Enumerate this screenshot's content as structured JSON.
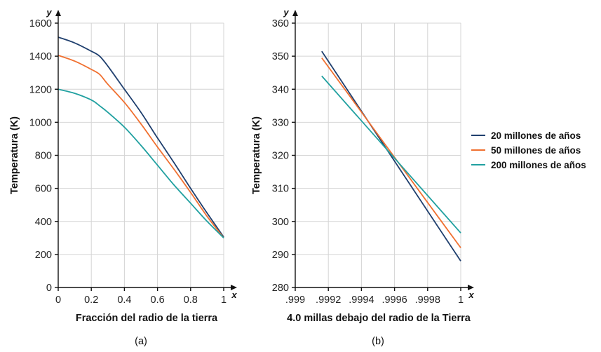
{
  "chart_data": [
    {
      "type": "line",
      "caption": "(a)",
      "xlabel": "Fracción del radio de la tierra",
      "ylabel": "Temperatura (K)",
      "x_axis_letter": "x",
      "y_axis_letter": "y",
      "xlim": [
        0,
        1
      ],
      "ylim": [
        0,
        1600
      ],
      "xticks": [
        0,
        0.2,
        0.4,
        0.6,
        0.8,
        1
      ],
      "xtick_labels": [
        "0",
        "0.2",
        "0.4",
        "0.6",
        "0.8",
        "1"
      ],
      "yticks": [
        0,
        200,
        400,
        600,
        800,
        1000,
        1200,
        1400,
        1600
      ],
      "ytick_labels": [
        "0",
        "200",
        "400",
        "600",
        "800",
        "1000",
        "1200",
        "1400",
        "1600"
      ],
      "grid": true,
      "series": [
        {
          "name": "20 millones de años",
          "color": "#1f3f6e",
          "x": [
            0,
            0.1,
            0.2,
            0.25,
            0.3,
            0.4,
            0.5,
            0.6,
            0.7,
            0.8,
            0.9,
            1.0
          ],
          "y": [
            1515,
            1480,
            1430,
            1400,
            1340,
            1200,
            1060,
            905,
            755,
            600,
            450,
            305
          ]
        },
        {
          "name": "50 millones de años",
          "color": "#f07030",
          "x": [
            0,
            0.1,
            0.2,
            0.25,
            0.3,
            0.4,
            0.5,
            0.6,
            0.7,
            0.8,
            0.9,
            1.0
          ],
          "y": [
            1405,
            1370,
            1320,
            1290,
            1230,
            1120,
            990,
            850,
            715,
            575,
            430,
            300
          ]
        },
        {
          "name": "200 millones de años",
          "color": "#20a0a0",
          "x": [
            0,
            0.1,
            0.2,
            0.25,
            0.3,
            0.4,
            0.5,
            0.6,
            0.7,
            0.8,
            0.9,
            1.0
          ],
          "y": [
            1200,
            1175,
            1135,
            1100,
            1060,
            970,
            860,
            740,
            620,
            510,
            400,
            300
          ]
        }
      ]
    },
    {
      "type": "line",
      "caption": "(b)",
      "xlabel": "4.0 millas debajo del radio de la Tierra",
      "ylabel": "Temperatura (K)",
      "x_axis_letter": "x",
      "y_axis_letter": "y",
      "xlim": [
        0.999,
        1
      ],
      "ylim": [
        280,
        360
      ],
      "xticks": [
        0.999,
        0.9992,
        0.9994,
        0.9996,
        0.9998,
        1
      ],
      "xtick_labels": [
        ".999",
        ".9992",
        ".9994",
        ".9996",
        ".9998",
        "1"
      ],
      "yticks": [
        280,
        290,
        300,
        310,
        320,
        330,
        340,
        350,
        360
      ],
      "ytick_labels": [
        "280",
        "290",
        "300",
        "310",
        "320",
        "330",
        "340",
        "350",
        "360"
      ],
      "grid": true,
      "series": [
        {
          "name": "20 millones de años",
          "color": "#1f3f6e",
          "x": [
            0.99916,
            1.0
          ],
          "y": [
            351.5,
            288
          ]
        },
        {
          "name": "50 millones de años",
          "color": "#f07030",
          "x": [
            0.99916,
            1.0
          ],
          "y": [
            349.5,
            292
          ]
        },
        {
          "name": "200 millones de años",
          "color": "#20a0a0",
          "x": [
            0.99916,
            1.0
          ],
          "y": [
            344,
            296.5
          ]
        }
      ]
    }
  ],
  "legend": {
    "placement": "right",
    "entries": [
      {
        "label": "20 millones de años",
        "color": "#1f3f6e"
      },
      {
        "label": "50 millones de años",
        "color": "#f07030"
      },
      {
        "label": "200 millones de años",
        "color": "#20a0a0"
      }
    ]
  }
}
